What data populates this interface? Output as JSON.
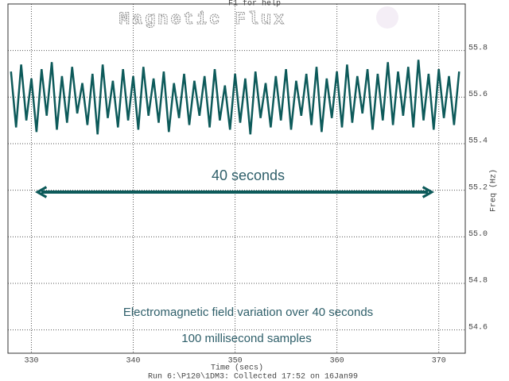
{
  "chart_data": {
    "type": "line",
    "title": "Magnetic Flux",
    "help_text": "F1 for help",
    "x_label": "Time (secs)",
    "y_label": "Freq (Hz)",
    "footer": "Run 6:\\P120\\1DM3: Collected 17:52 on 16Jan99",
    "annotations": [
      "40 seconds",
      "Electromagnetic field variation over 40 seconds",
      "100 millisecond samples"
    ],
    "xlim": [
      327.7,
      372.6
    ],
    "xticks": [
      330,
      340,
      350,
      360,
      370
    ],
    "ylim": [
      54.5,
      56.0
    ],
    "yticks": [
      {
        "value": 54.6,
        "label": "54.6"
      },
      {
        "value": 54.8,
        "label": "54.8"
      },
      {
        "value": 55,
        "label": "55.0"
      },
      {
        "value": 55.2,
        "label": "55.2"
      },
      {
        "value": 55.4,
        "label": "55.4"
      },
      {
        "value": 55.6,
        "label": "55.6"
      },
      {
        "value": 55.8,
        "label": "55.8"
      }
    ],
    "grid": true,
    "color": "#0d5a5a",
    "x": [
      328,
      328.5,
      329,
      329.5,
      330,
      330.5,
      331,
      331.5,
      332,
      332.5,
      333,
      333.5,
      334,
      334.5,
      335,
      335.5,
      336,
      336.5,
      337,
      337.5,
      338,
      338.5,
      339,
      339.5,
      340,
      340.5,
      341,
      341.5,
      342,
      342.5,
      343,
      343.5,
      344,
      344.5,
      345,
      345.5,
      346,
      346.5,
      347,
      347.5,
      348,
      348.5,
      349,
      349.5,
      350,
      350.5,
      351,
      351.5,
      352,
      352.5,
      353,
      353.5,
      354,
      354.5,
      355,
      355.5,
      356,
      356.5,
      357,
      357.5,
      358,
      358.5,
      359,
      359.5,
      360,
      360.5,
      361,
      361.5,
      362,
      362.5,
      363,
      363.5,
      364,
      364.5,
      365,
      365.5,
      366,
      366.5,
      367,
      367.5,
      368,
      368.5,
      369,
      369.5,
      370,
      370.5,
      371,
      371.5,
      372
    ],
    "values": [
      55.71,
      55.47,
      55.74,
      55.5,
      55.68,
      55.45,
      55.72,
      55.52,
      55.75,
      55.46,
      55.69,
      55.49,
      55.73,
      55.53,
      55.66,
      55.48,
      55.7,
      55.44,
      55.74,
      55.51,
      55.67,
      55.47,
      55.72,
      55.5,
      55.69,
      55.46,
      55.73,
      55.52,
      55.68,
      55.49,
      55.71,
      55.45,
      55.66,
      55.51,
      55.7,
      55.48,
      55.67,
      55.52,
      55.69,
      55.47,
      55.72,
      55.5,
      55.65,
      55.46,
      55.7,
      55.49,
      55.68,
      55.44,
      55.71,
      55.51,
      55.66,
      55.47,
      55.69,
      55.5,
      55.72,
      55.46,
      55.67,
      55.52,
      55.7,
      55.48,
      55.73,
      55.45,
      55.68,
      55.51,
      55.71,
      55.47,
      55.74,
      55.49,
      55.69,
      55.53,
      55.72,
      55.46,
      55.7,
      55.5,
      55.75,
      55.48,
      55.71,
      55.52,
      55.73,
      55.47,
      55.76,
      55.5,
      55.7,
      55.46,
      55.72,
      55.51,
      55.69,
      55.48,
      55.71
    ]
  }
}
